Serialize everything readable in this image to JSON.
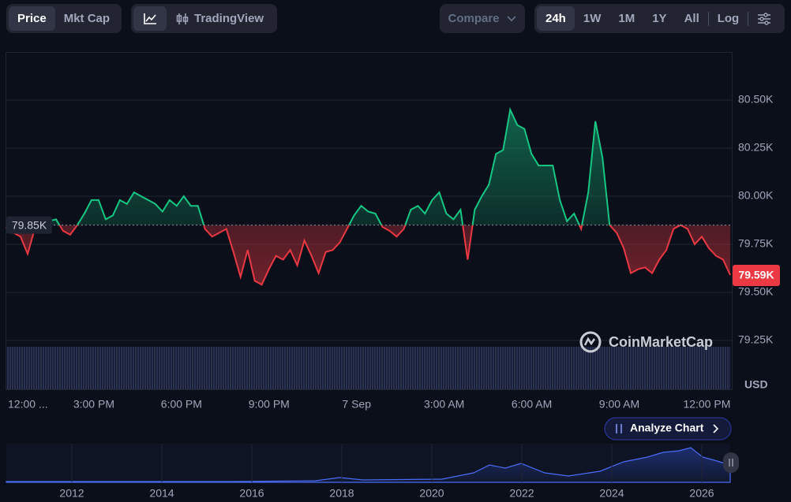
{
  "toolbar": {
    "views": [
      "Price",
      "Mkt Cap"
    ],
    "chart_mode": "TradingView",
    "compare": "Compare",
    "ranges": [
      "24h",
      "1W",
      "1M",
      "1Y",
      "All"
    ],
    "log": "Log"
  },
  "watermark": "CoinMarketCap",
  "analyze": "Analyze Chart",
  "navigator": {
    "xticks": [
      "2012",
      "2014",
      "2016",
      "2018",
      "2020",
      "2022",
      "2024",
      "2026"
    ]
  },
  "chart_data": {
    "type": "line",
    "currency": "USD",
    "xlim": [
      0,
      24.8
    ],
    "xticks": [
      {
        "value": 0,
        "label": "12:00 ..."
      },
      {
        "value": 3,
        "label": "3:00 PM"
      },
      {
        "value": 6,
        "label": "6:00 PM"
      },
      {
        "value": 9,
        "label": "9:00 PM"
      },
      {
        "value": 12,
        "label": "7 Sep"
      },
      {
        "value": 15,
        "label": "3:00 AM"
      },
      {
        "value": 18,
        "label": "6:00 AM"
      },
      {
        "value": 21,
        "label": "9:00 AM"
      },
      {
        "value": 24,
        "label": "12:00 PM"
      }
    ],
    "ylim": [
      79000,
      80750
    ],
    "yticks": [
      {
        "value": 79250,
        "label": "79.25K"
      },
      {
        "value": 79500,
        "label": "79.50K"
      },
      {
        "value": 79750,
        "label": "79.75K"
      },
      {
        "value": 80000,
        "label": "80.00K"
      },
      {
        "value": 80250,
        "label": "80.25K"
      },
      {
        "value": 80500,
        "label": "80.50K"
      }
    ],
    "grid": true,
    "baseline": {
      "value": 79850,
      "label": "79.85K"
    },
    "last_label": "79.59K",
    "up_color": "#16c784",
    "down_color": "#ea3943",
    "values": [
      79840,
      79810,
      79790,
      79700,
      79830,
      79850,
      79870,
      79880,
      79820,
      79800,
      79850,
      79910,
      79980,
      79980,
      79880,
      79900,
      79980,
      79960,
      80020,
      80000,
      79980,
      79960,
      79920,
      79980,
      79950,
      80000,
      79950,
      79950,
      79830,
      79790,
      79810,
      79830,
      79710,
      79580,
      79720,
      79560,
      79540,
      79620,
      79690,
      79670,
      79720,
      79640,
      79770,
      79690,
      79600,
      79710,
      79720,
      79760,
      79830,
      79900,
      79950,
      79920,
      79910,
      79840,
      79820,
      79790,
      79830,
      79930,
      79950,
      79910,
      79980,
      80020,
      79910,
      79880,
      79930,
      79670,
      79930,
      80000,
      80060,
      80220,
      80240,
      80450,
      80370,
      80350,
      80220,
      80160,
      80160,
      80160,
      79980,
      79870,
      79910,
      79830,
      80020,
      80390,
      80200,
      79850,
      79810,
      79730,
      79600,
      79620,
      79630,
      79600,
      79670,
      79720,
      79830,
      79850,
      79830,
      79750,
      79790,
      79730,
      79690,
      79670,
      79590
    ]
  }
}
